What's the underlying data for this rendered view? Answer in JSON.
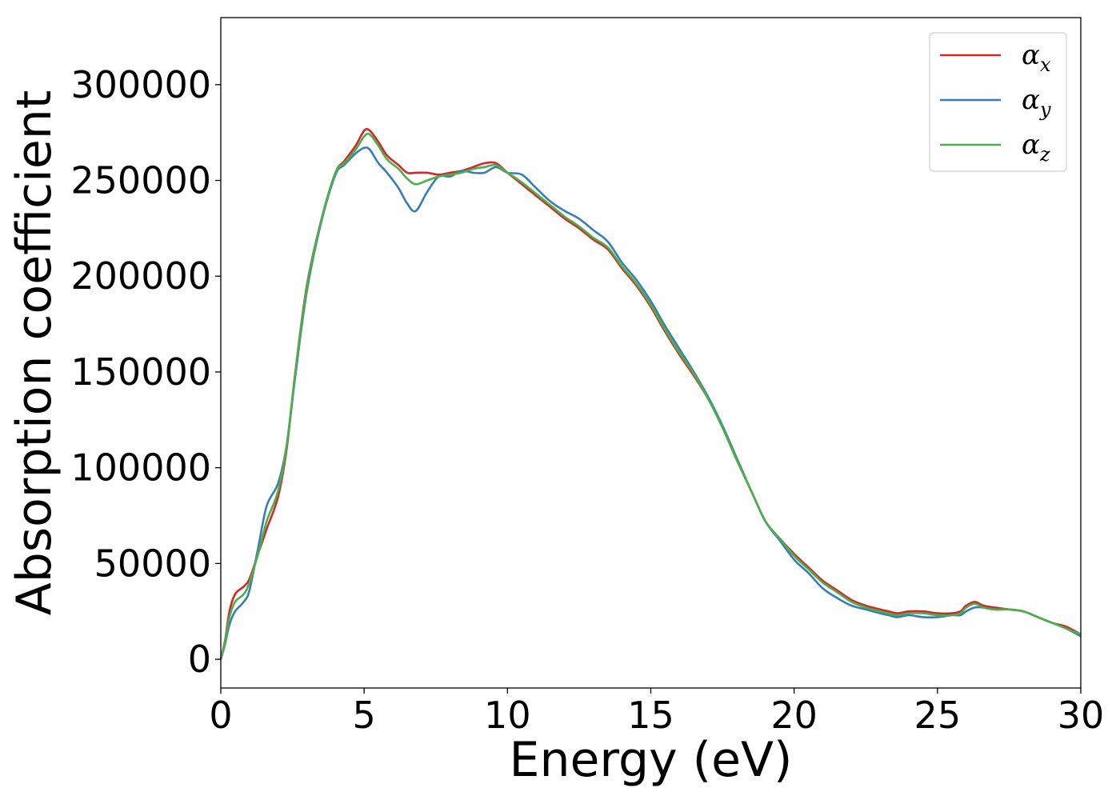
{
  "chart_data": {
    "type": "line",
    "title": "",
    "xlabel": "Energy (eV)",
    "ylabel": "Absorption coefficient",
    "xlim": [
      0,
      30
    ],
    "ylim": [
      -15000,
      335000
    ],
    "xticks": [
      0,
      5,
      10,
      15,
      20,
      25,
      30
    ],
    "yticks": [
      0,
      50000,
      100000,
      150000,
      200000,
      250000,
      300000
    ],
    "grid": false,
    "legend_position": "top-right",
    "series": [
      {
        "name": "α",
        "subscript": "x",
        "color": "#d62728",
        "x": [
          0,
          0.15,
          0.3,
          0.5,
          0.8,
          1.0,
          1.3,
          1.6,
          2.0,
          2.3,
          2.6,
          3.0,
          3.5,
          4.0,
          4.3,
          4.7,
          5.0,
          5.2,
          5.5,
          5.8,
          6.2,
          6.5,
          6.8,
          7.2,
          7.6,
          8.0,
          8.4,
          8.8,
          9.2,
          9.6,
          10.0,
          10.5,
          11.0,
          11.5,
          12.0,
          12.5,
          13.0,
          13.5,
          14.0,
          14.5,
          15.0,
          15.5,
          16.0,
          16.5,
          17.0,
          17.5,
          18.0,
          18.5,
          19.0,
          19.5,
          20.0,
          20.5,
          21.0,
          21.5,
          22.0,
          22.5,
          23.0,
          23.3,
          23.6,
          24.0,
          24.5,
          25.0,
          25.5,
          25.8,
          26.0,
          26.3,
          26.6,
          27.0,
          27.5,
          28.0,
          28.5,
          29.0,
          29.5,
          30.0
        ],
        "values": [
          0,
          10000,
          25000,
          34000,
          38000,
          42000,
          55000,
          68000,
          85000,
          110000,
          150000,
          195000,
          229000,
          254000,
          260000,
          268000,
          276000,
          276000,
          270000,
          263000,
          258000,
          254000,
          254000,
          254000,
          253000,
          254000,
          255000,
          257000,
          259000,
          259000,
          254000,
          248000,
          242000,
          236000,
          230000,
          225000,
          219000,
          214000,
          204000,
          195000,
          184000,
          171000,
          159000,
          148000,
          136000,
          121000,
          104000,
          88000,
          72000,
          63000,
          55000,
          48000,
          41000,
          36000,
          31000,
          28000,
          26000,
          25000,
          24000,
          25000,
          25000,
          24000,
          24000,
          25000,
          28000,
          30000,
          28000,
          27000,
          26000,
          25000,
          22000,
          19000,
          17000,
          13000
        ]
      },
      {
        "name": "α",
        "subscript": "y",
        "color": "#377eb8",
        "x": [
          0,
          0.15,
          0.3,
          0.5,
          0.8,
          1.0,
          1.3,
          1.6,
          2.0,
          2.3,
          2.6,
          3.0,
          3.5,
          4.0,
          4.3,
          4.7,
          5.0,
          5.2,
          5.5,
          5.8,
          6.2,
          6.5,
          6.8,
          7.2,
          7.6,
          8.0,
          8.4,
          8.8,
          9.2,
          9.6,
          10.0,
          10.5,
          11.0,
          11.5,
          12.0,
          12.5,
          13.0,
          13.5,
          14.0,
          14.5,
          15.0,
          15.5,
          16.0,
          16.5,
          17.0,
          17.5,
          18.0,
          18.5,
          19.0,
          19.5,
          20.0,
          20.5,
          21.0,
          21.5,
          22.0,
          22.5,
          23.0,
          23.3,
          23.6,
          24.0,
          24.5,
          25.0,
          25.5,
          25.8,
          26.0,
          26.3,
          26.6,
          27.0,
          27.5,
          28.0,
          28.5,
          29.0,
          29.5,
          30.0
        ],
        "values": [
          0,
          8000,
          18000,
          25000,
          30000,
          36000,
          58000,
          80000,
          92000,
          112000,
          148000,
          192000,
          228000,
          253000,
          258000,
          264000,
          267000,
          266000,
          259000,
          254000,
          246000,
          238000,
          234000,
          244000,
          252000,
          252000,
          255000,
          254000,
          254000,
          257000,
          254000,
          253000,
          246000,
          239000,
          234000,
          230000,
          224000,
          218000,
          207000,
          198000,
          187000,
          174000,
          162000,
          150000,
          137000,
          122000,
          105000,
          88000,
          72000,
          62000,
          52000,
          45000,
          37000,
          32000,
          28000,
          26000,
          24000,
          23000,
          22000,
          23000,
          22000,
          22000,
          23000,
          23000,
          25000,
          27000,
          27000,
          26000,
          26000,
          25000,
          22000,
          19000,
          16000,
          12000
        ]
      },
      {
        "name": "α",
        "subscript": "z",
        "color": "#4daf4a",
        "x": [
          0,
          0.15,
          0.3,
          0.5,
          0.8,
          1.0,
          1.3,
          1.6,
          2.0,
          2.3,
          2.6,
          3.0,
          3.5,
          4.0,
          4.3,
          4.7,
          5.0,
          5.2,
          5.5,
          5.8,
          6.2,
          6.5,
          6.8,
          7.2,
          7.6,
          8.0,
          8.4,
          8.8,
          9.2,
          9.6,
          10.0,
          10.5,
          11.0,
          11.5,
          12.0,
          12.5,
          13.0,
          13.5,
          14.0,
          14.5,
          15.0,
          15.5,
          16.0,
          16.5,
          17.0,
          17.5,
          18.0,
          18.5,
          19.0,
          19.5,
          20.0,
          20.5,
          21.0,
          21.5,
          22.0,
          22.5,
          23.0,
          23.3,
          23.6,
          24.0,
          24.5,
          25.0,
          25.5,
          25.8,
          26.0,
          26.3,
          26.6,
          27.0,
          27.5,
          28.0,
          28.5,
          29.0,
          29.5,
          30.0
        ],
        "values": [
          0,
          9000,
          22000,
          30000,
          34000,
          40000,
          55000,
          72000,
          88000,
          112000,
          150000,
          194000,
          229000,
          254000,
          259000,
          266000,
          273000,
          274000,
          268000,
          261000,
          256000,
          251000,
          248000,
          250000,
          252000,
          253000,
          254000,
          256000,
          257000,
          258000,
          254000,
          249000,
          243000,
          237000,
          231000,
          226000,
          220000,
          215000,
          205000,
          196000,
          185000,
          172000,
          160000,
          149000,
          136000,
          121000,
          104000,
          88000,
          72000,
          63000,
          54000,
          47000,
          40000,
          35000,
          30000,
          27000,
          25000,
          24000,
          23000,
          24000,
          24000,
          23000,
          23000,
          24000,
          27000,
          29000,
          27000,
          26000,
          26000,
          25000,
          22000,
          19000,
          16000,
          13000
        ]
      }
    ]
  }
}
